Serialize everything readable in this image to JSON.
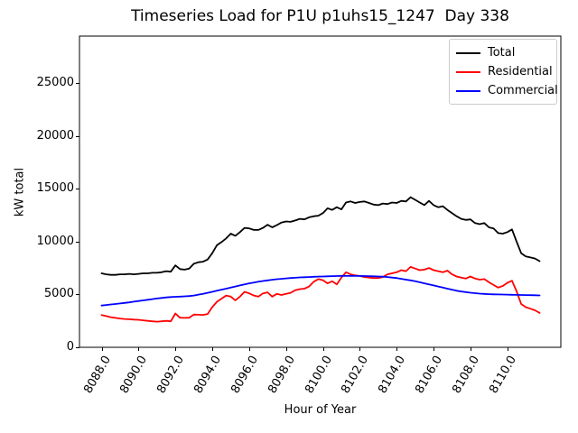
{
  "chart_data": {
    "type": "line",
    "title": "Timeseries Load for P1U p1uhs15_1247  Day 338",
    "xlabel": "Hour of Year",
    "ylabel": "kW total",
    "grid": false,
    "legend_position": "upper right",
    "xlim": [
      8086.8,
      8112.9
    ],
    "ylim": [
      0,
      29440
    ],
    "xtick_values": [
      8088,
      8090,
      8092,
      8094,
      8096,
      8098,
      8100,
      8102,
      8104,
      8106,
      8108,
      8110
    ],
    "xtick_labels": [
      "8088.0",
      "8090.0",
      "8092.0",
      "8094.0",
      "8096.0",
      "8098.0",
      "8100.0",
      "8102.0",
      "8104.0",
      "8106.0",
      "8108.0",
      "8110.0"
    ],
    "ytick_values": [
      0,
      5000,
      10000,
      15000,
      20000,
      25000
    ],
    "ytick_labels": [
      "0",
      "5000",
      "10000",
      "15000",
      "20000",
      "25000"
    ],
    "x": [
      8088.0,
      8088.25,
      8088.5,
      8088.75,
      8089.0,
      8089.25,
      8089.5,
      8089.75,
      8090.0,
      8090.25,
      8090.5,
      8090.75,
      8091.0,
      8091.25,
      8091.5,
      8091.75,
      8092.0,
      8092.25,
      8092.5,
      8092.75,
      8093.0,
      8093.25,
      8093.5,
      8093.75,
      8094.0,
      8094.25,
      8094.5,
      8094.75,
      8095.0,
      8095.25,
      8095.5,
      8095.75,
      8096.0,
      8096.25,
      8096.5,
      8096.75,
      8097.0,
      8097.25,
      8097.5,
      8097.75,
      8098.0,
      8098.25,
      8098.5,
      8098.75,
      8099.0,
      8099.25,
      8099.5,
      8099.75,
      8100.0,
      8100.25,
      8100.5,
      8100.75,
      8101.0,
      8101.25,
      8101.5,
      8101.75,
      8102.0,
      8102.25,
      8102.5,
      8102.75,
      8103.0,
      8103.25,
      8103.5,
      8103.75,
      8104.0,
      8104.25,
      8104.5,
      8104.75,
      8105.0,
      8105.25,
      8105.5,
      8105.75,
      8106.0,
      8106.25,
      8106.5,
      8106.75,
      8107.0,
      8107.25,
      8107.5,
      8107.75,
      8108.0,
      8108.25,
      8108.5,
      8108.75,
      8109.0,
      8109.25,
      8109.5,
      8109.75,
      8110.0,
      8110.25,
      8110.5,
      8110.75,
      8111.0,
      8111.25,
      8111.5,
      8111.75
    ],
    "series": [
      {
        "name": "Total",
        "color": "#000000",
        "values": [
          7000,
          6900,
          6850,
          6850,
          6900,
          6900,
          6950,
          6900,
          6950,
          7000,
          7000,
          7050,
          7050,
          7100,
          7200,
          7150,
          7750,
          7400,
          7350,
          7450,
          7900,
          8050,
          8100,
          8300,
          8900,
          9650,
          9950,
          10300,
          10750,
          10550,
          10900,
          11300,
          11250,
          11100,
          11100,
          11300,
          11600,
          11350,
          11550,
          11800,
          11900,
          11870,
          12000,
          12150,
          12100,
          12300,
          12400,
          12450,
          12700,
          13150,
          13000,
          13250,
          13050,
          13700,
          13800,
          13650,
          13750,
          13800,
          13650,
          13500,
          13450,
          13600,
          13550,
          13700,
          13650,
          13850,
          13800,
          14200,
          13950,
          13700,
          13450,
          13850,
          13450,
          13250,
          13350,
          13000,
          12700,
          12400,
          12150,
          12050,
          12100,
          11750,
          11650,
          11750,
          11350,
          11250,
          10800,
          10750,
          10900,
          11150,
          10000,
          8900,
          8600,
          8500,
          8400,
          8150
        ]
      },
      {
        "name": "Residential",
        "color": "#ff0000",
        "values": [
          3050,
          2950,
          2850,
          2780,
          2720,
          2680,
          2650,
          2620,
          2600,
          2550,
          2500,
          2460,
          2420,
          2460,
          2500,
          2460,
          3200,
          2800,
          2780,
          2800,
          3100,
          3080,
          3060,
          3150,
          3800,
          4300,
          4600,
          4900,
          4800,
          4450,
          4800,
          5250,
          5100,
          4900,
          4800,
          5100,
          5200,
          4800,
          5050,
          4950,
          5050,
          5150,
          5400,
          5500,
          5550,
          5750,
          6200,
          6450,
          6350,
          6050,
          6250,
          5950,
          6600,
          7100,
          6900,
          6800,
          6750,
          6650,
          6600,
          6550,
          6550,
          6650,
          6900,
          7000,
          7100,
          7300,
          7200,
          7600,
          7450,
          7300,
          7350,
          7500,
          7300,
          7200,
          7100,
          7250,
          6900,
          6700,
          6600,
          6500,
          6700,
          6500,
          6400,
          6450,
          6150,
          5900,
          5650,
          5800,
          6100,
          6300,
          5300,
          4100,
          3800,
          3650,
          3500,
          3250
        ]
      },
      {
        "name": "Commercial",
        "color": "#0000ff",
        "values": [
          3950,
          4000,
          4050,
          4100,
          4150,
          4200,
          4250,
          4320,
          4380,
          4440,
          4500,
          4560,
          4620,
          4670,
          4720,
          4750,
          4780,
          4800,
          4820,
          4850,
          4900,
          4980,
          5060,
          5150,
          5250,
          5350,
          5450,
          5550,
          5650,
          5750,
          5850,
          5950,
          6050,
          6130,
          6200,
          6270,
          6330,
          6390,
          6440,
          6480,
          6520,
          6550,
          6580,
          6610,
          6630,
          6650,
          6670,
          6690,
          6700,
          6720,
          6730,
          6740,
          6750,
          6750,
          6750,
          6750,
          6750,
          6740,
          6730,
          6720,
          6700,
          6680,
          6650,
          6600,
          6550,
          6480,
          6400,
          6330,
          6250,
          6150,
          6050,
          5950,
          5850,
          5750,
          5650,
          5550,
          5450,
          5350,
          5280,
          5220,
          5160,
          5120,
          5080,
          5050,
          5030,
          5010,
          5000,
          4990,
          4980,
          4970,
          4960,
          4950,
          4940,
          4930,
          4920,
          4910
        ]
      }
    ]
  }
}
